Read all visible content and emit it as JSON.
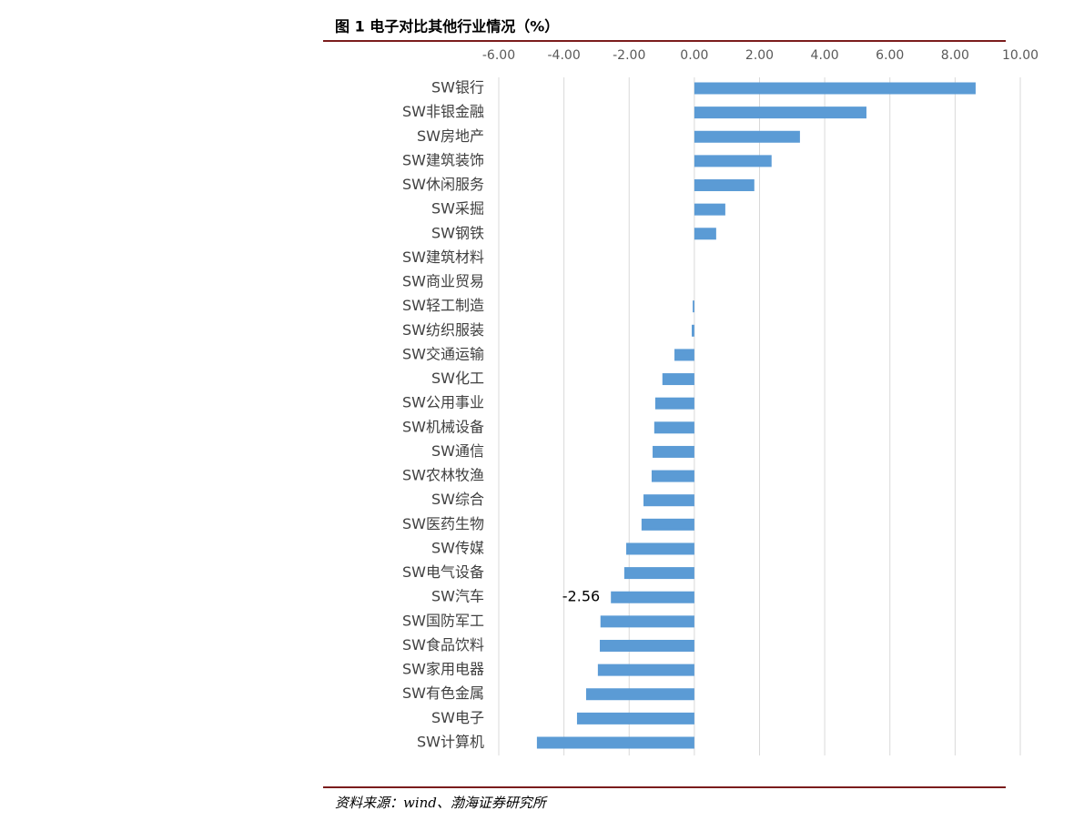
{
  "chart_data": {
    "type": "hbar",
    "title": "图 1 电子对比其他行业情况（%）",
    "source": "资料来源：wind、渤海证券研究所",
    "categories": [
      "SW银行",
      "SW非银金融",
      "SW房地产",
      "SW建筑装饰",
      "SW休闲服务",
      "SW采掘",
      "SW钢铁",
      "SW建筑材料",
      "SW商业贸易",
      "SW轻工制造",
      "SW纺织服装",
      "SW交通运输",
      "SW化工",
      "SW公用事业",
      "SW机械设备",
      "SW通信",
      "SW农林牧渔",
      "SW综合",
      "SW医药生物",
      "SW传媒",
      "SW电气设备",
      "SW汽车",
      "SW国防军工",
      "SW食品饮料",
      "SW家用电器",
      "SW有色金属",
      "SW电子",
      "SW计算机"
    ],
    "values": [
      8.63,
      5.28,
      3.24,
      2.37,
      1.84,
      0.95,
      0.67,
      0,
      0,
      -0.05,
      -0.08,
      -0.61,
      -0.98,
      -1.2,
      -1.23,
      -1.28,
      -1.31,
      -1.56,
      -1.62,
      -2.09,
      -2.15,
      -2.56,
      -2.88,
      -2.9,
      -2.96,
      -3.32,
      -3.6,
      -4.83
    ],
    "value_labels": [
      null,
      null,
      null,
      null,
      null,
      null,
      null,
      null,
      null,
      null,
      null,
      null,
      null,
      null,
      null,
      null,
      null,
      null,
      null,
      null,
      null,
      "-2.56",
      null,
      null,
      null,
      null,
      null,
      null
    ],
    "color": "#5b9bd5",
    "xlim": [
      -6,
      10
    ],
    "xticks": [
      {
        "value": -6,
        "label": "-6.00"
      },
      {
        "value": -4,
        "label": "-4.00"
      },
      {
        "value": -2,
        "label": "-2.00"
      },
      {
        "value": 0,
        "label": "0.00"
      },
      {
        "value": 2,
        "label": "2.00"
      },
      {
        "value": 4,
        "label": "4.00"
      },
      {
        "value": 6,
        "label": "6.00"
      },
      {
        "value": 8,
        "label": "8.00"
      },
      {
        "value": 10,
        "label": "10.00"
      }
    ],
    "grid": true
  }
}
